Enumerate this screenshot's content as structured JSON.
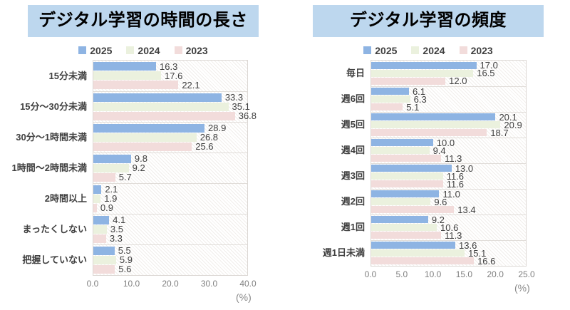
{
  "page": {
    "background": "#ffffff"
  },
  "colors": {
    "title_band_bg": "#BDD7EE",
    "title_text": "#000000",
    "series_2025": "#8EB4E3",
    "series_2024": "#EBF1DE",
    "series_2023": "#F2DCDB",
    "category_text": "#404040",
    "value_text": "#3F3F3F",
    "axis_text": "#7F7F7F"
  },
  "chart_data": [
    {
      "type": "bar",
      "orientation": "horizontal",
      "title": "デジタル学習の時間の長さ",
      "unit_label": "(%)",
      "xlim": [
        0,
        40
      ],
      "xticks": [
        "0.0",
        "10.0",
        "20.0",
        "30.0",
        "40.0"
      ],
      "grid": false,
      "legend_position": "top",
      "legend": [
        "2025",
        "2024",
        "2023"
      ],
      "categories": [
        "15分未満",
        "15分〜30分未満",
        "30分〜1時間未満",
        "1時間〜2時間未満",
        "2時間以上",
        "まったくしない",
        "把握していない"
      ],
      "series": [
        {
          "name": "2025",
          "color": "#8EB4E3",
          "values": [
            16.3,
            33.3,
            28.9,
            9.8,
            2.1,
            4.1,
            5.5
          ]
        },
        {
          "name": "2024",
          "color": "#EBF1DE",
          "values": [
            17.6,
            35.1,
            26.8,
            9.2,
            1.9,
            3.5,
            5.9
          ]
        },
        {
          "name": "2023",
          "color": "#F2DCDB",
          "values": [
            22.1,
            36.8,
            25.6,
            5.7,
            0.9,
            3.3,
            5.6
          ]
        }
      ]
    },
    {
      "type": "bar",
      "orientation": "horizontal",
      "title": "デジタル学習の頻度",
      "unit_label": "(%)",
      "xlim": [
        0,
        25
      ],
      "xticks": [
        "0.0",
        "5.0",
        "10.0",
        "15.0",
        "20.0",
        "25.0"
      ],
      "grid": false,
      "legend_position": "top",
      "legend": [
        "2025",
        "2024",
        "2023"
      ],
      "categories": [
        "毎日",
        "週6回",
        "週5回",
        "週4回",
        "週3回",
        "週2回",
        "週1回",
        "週1日未満"
      ],
      "series": [
        {
          "name": "2025",
          "color": "#8EB4E3",
          "values": [
            17.0,
            6.1,
            20.1,
            10.0,
            13.0,
            11.0,
            9.2,
            13.6
          ]
        },
        {
          "name": "2024",
          "color": "#EBF1DE",
          "values": [
            16.5,
            6.3,
            20.9,
            9.4,
            11.6,
            9.6,
            10.6,
            15.1
          ]
        },
        {
          "name": "2023",
          "color": "#F2DCDB",
          "values": [
            12.0,
            5.1,
            18.7,
            11.3,
            11.6,
            13.4,
            11.3,
            16.6
          ]
        }
      ]
    }
  ]
}
